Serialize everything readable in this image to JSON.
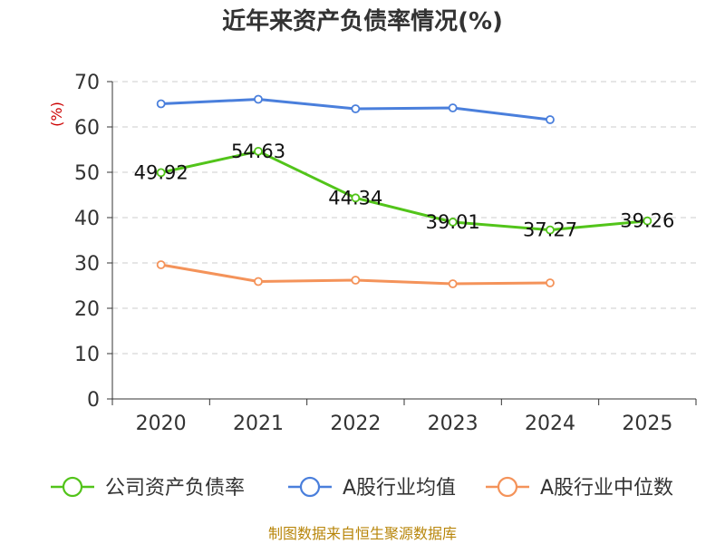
{
  "chart_data": {
    "type": "line",
    "title": "近年来资产负债率情况(%)",
    "ylabel": "(%)",
    "xlabel": "",
    "ylim": [
      0,
      70
    ],
    "yticks": [
      0,
      10,
      20,
      30,
      40,
      50,
      60,
      70
    ],
    "categories": [
      "2020",
      "2021",
      "2022",
      "2023",
      "2024",
      "2025"
    ],
    "grid": true,
    "legend_position": "bottom",
    "series": [
      {
        "name": "公司资产负债率",
        "color": "#52c41a",
        "values": [
          49.92,
          54.63,
          44.34,
          39.01,
          37.27,
          39.26
        ],
        "labels": [
          "49.92",
          "54.63",
          "44.34",
          "39.01",
          "37.27",
          "39.26"
        ],
        "show_labels": true
      },
      {
        "name": "A股行业均值",
        "color": "#4a7fdc",
        "values": [
          65.1,
          66.1,
          64.0,
          64.2,
          61.6,
          null
        ],
        "show_labels": false
      },
      {
        "name": "A股行业中位数",
        "color": "#f4935a",
        "values": [
          29.6,
          25.9,
          26.2,
          25.4,
          25.6,
          null
        ],
        "show_labels": false
      }
    ]
  },
  "footer": {
    "source": "制图数据来自恒生聚源数据库"
  }
}
